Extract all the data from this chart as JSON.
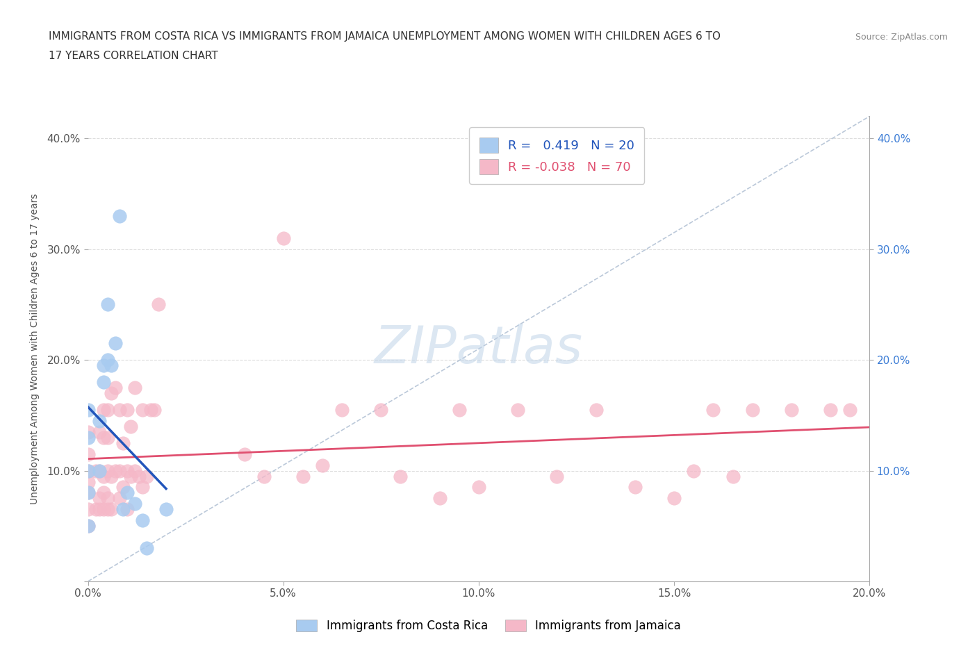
{
  "title_line1": "IMMIGRANTS FROM COSTA RICA VS IMMIGRANTS FROM JAMAICA UNEMPLOYMENT AMONG WOMEN WITH CHILDREN AGES 6 TO",
  "title_line2": "17 YEARS CORRELATION CHART",
  "source": "Source: ZipAtlas.com",
  "ylabel": "Unemployment Among Women with Children Ages 6 to 17 years",
  "xlim": [
    0.0,
    0.2
  ],
  "ylim": [
    0.0,
    0.42
  ],
  "xticks": [
    0.0,
    0.05,
    0.1,
    0.15,
    0.2
  ],
  "yticks": [
    0.0,
    0.1,
    0.2,
    0.3,
    0.4
  ],
  "xticklabels": [
    "0.0%",
    "5.0%",
    "10.0%",
    "15.0%",
    "20.0%"
  ],
  "yticklabels": [
    "",
    "10.0%",
    "20.0%",
    "30.0%",
    "40.0%"
  ],
  "right_yticklabels": [
    "10.0%",
    "20.0%",
    "30.0%",
    "40.0%"
  ],
  "right_yticks": [
    0.1,
    0.2,
    0.3,
    0.4
  ],
  "costa_rica_R": 0.419,
  "costa_rica_N": 20,
  "jamaica_R": -0.038,
  "jamaica_N": 70,
  "costa_rica_color": "#A8CBF0",
  "jamaica_color": "#F5B8C8",
  "trendline_costa_rica_color": "#2255BB",
  "trendline_jamaica_color": "#E05070",
  "dashed_line_color": "#AABBD0",
  "watermark": "ZIPatlas",
  "background_color": "#FFFFFF",
  "grid_color": "#DDDDDD",
  "legend_label1": "Immigrants from Costa Rica",
  "legend_label2": "Immigrants from Jamaica",
  "costa_rica_x": [
    0.0,
    0.0,
    0.0,
    0.0,
    0.0,
    0.003,
    0.003,
    0.004,
    0.004,
    0.005,
    0.005,
    0.006,
    0.007,
    0.008,
    0.009,
    0.01,
    0.012,
    0.014,
    0.015,
    0.02
  ],
  "costa_rica_y": [
    0.05,
    0.08,
    0.1,
    0.13,
    0.155,
    0.1,
    0.145,
    0.18,
    0.195,
    0.2,
    0.25,
    0.195,
    0.215,
    0.33,
    0.065,
    0.08,
    0.07,
    0.055,
    0.03,
    0.065
  ],
  "jamaica_x": [
    0.0,
    0.0,
    0.0,
    0.0,
    0.0,
    0.0,
    0.0,
    0.002,
    0.002,
    0.003,
    0.003,
    0.003,
    0.003,
    0.004,
    0.004,
    0.004,
    0.004,
    0.004,
    0.005,
    0.005,
    0.005,
    0.005,
    0.005,
    0.006,
    0.006,
    0.006,
    0.007,
    0.007,
    0.008,
    0.008,
    0.008,
    0.009,
    0.009,
    0.01,
    0.01,
    0.01,
    0.011,
    0.011,
    0.012,
    0.012,
    0.013,
    0.014,
    0.014,
    0.015,
    0.016,
    0.017,
    0.018,
    0.04,
    0.045,
    0.05,
    0.055,
    0.06,
    0.065,
    0.075,
    0.08,
    0.09,
    0.095,
    0.1,
    0.11,
    0.12,
    0.13,
    0.14,
    0.15,
    0.155,
    0.16,
    0.165,
    0.17,
    0.18,
    0.19,
    0.195
  ],
  "jamaica_y": [
    0.05,
    0.065,
    0.08,
    0.09,
    0.1,
    0.115,
    0.135,
    0.065,
    0.1,
    0.065,
    0.075,
    0.1,
    0.135,
    0.065,
    0.08,
    0.095,
    0.13,
    0.155,
    0.065,
    0.075,
    0.1,
    0.13,
    0.155,
    0.065,
    0.095,
    0.17,
    0.1,
    0.175,
    0.075,
    0.1,
    0.155,
    0.085,
    0.125,
    0.065,
    0.1,
    0.155,
    0.095,
    0.14,
    0.1,
    0.175,
    0.095,
    0.085,
    0.155,
    0.095,
    0.155,
    0.155,
    0.25,
    0.115,
    0.095,
    0.31,
    0.095,
    0.105,
    0.155,
    0.155,
    0.095,
    0.075,
    0.155,
    0.085,
    0.155,
    0.095,
    0.155,
    0.085,
    0.075,
    0.1,
    0.155,
    0.095,
    0.155,
    0.155,
    0.155,
    0.155
  ]
}
